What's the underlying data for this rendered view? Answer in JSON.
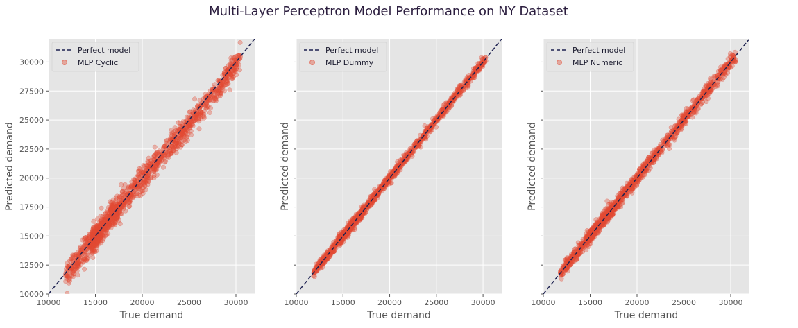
{
  "title": "Multi-Layer Perceptron Model Performance on NY Dataset",
  "colors": {
    "panel_bg": "#e5e5e5",
    "grid": "#ffffff",
    "points": "#e24a33",
    "perfect_line": "#1c2050",
    "text": "#555555"
  },
  "chart_data": [
    {
      "type": "scatter",
      "xlabel": "True demand",
      "ylabel": "Predicted demand",
      "xlim": [
        10000,
        32000
      ],
      "ylim": [
        10000,
        32000
      ],
      "xticks": [
        "10000",
        "15000",
        "20000",
        "25000",
        "30000"
      ],
      "yticks": [
        "10000",
        "12500",
        "15000",
        "17500",
        "20000",
        "22500",
        "25000",
        "27500",
        "30000"
      ],
      "grid": true,
      "legend": "top-left",
      "series": [
        {
          "name": "Perfect model",
          "kind": "line",
          "x": [
            10000,
            32000
          ],
          "y": [
            10000,
            32000
          ]
        },
        {
          "name": "MLP Cyclic",
          "kind": "scatter",
          "x_range": [
            11800,
            30500
          ],
          "points": [
            [
              12000,
              12000
            ],
            [
              15000,
              14800
            ],
            [
              18000,
              17900
            ],
            [
              20000,
              20100
            ],
            [
              22000,
              22200
            ],
            [
              25000,
              25100
            ],
            [
              28000,
              28200
            ],
            [
              30000,
              29600
            ]
          ]
        }
      ]
    },
    {
      "type": "scatter",
      "xlabel": "True demand",
      "ylabel": "Predicted demand",
      "xlim": [
        10000,
        32000
      ],
      "ylim": [
        10000,
        32000
      ],
      "xticks": [
        "10000",
        "15000",
        "20000",
        "25000",
        "30000"
      ],
      "yticks": [],
      "grid": true,
      "legend": "top-left",
      "series": [
        {
          "name": "Perfect model",
          "kind": "line",
          "x": [
            10000,
            32000
          ],
          "y": [
            10000,
            32000
          ]
        },
        {
          "name": "MLP Dummy",
          "kind": "scatter",
          "x_range": [
            11800,
            30300
          ],
          "points": [
            [
              12000,
              12000
            ],
            [
              15000,
              15000
            ],
            [
              18000,
              18000
            ],
            [
              20000,
              20000
            ],
            [
              22000,
              22000
            ],
            [
              25000,
              25000
            ],
            [
              28000,
              28000
            ],
            [
              30000,
              30000
            ]
          ]
        }
      ]
    },
    {
      "type": "scatter",
      "xlabel": "True demand",
      "ylabel": "Predicted demand",
      "xlim": [
        10000,
        32000
      ],
      "ylim": [
        10000,
        32000
      ],
      "xticks": [
        "10000",
        "15000",
        "20000",
        "25000",
        "30000"
      ],
      "yticks": [],
      "grid": true,
      "legend": "top-left",
      "series": [
        {
          "name": "Perfect model",
          "kind": "line",
          "x": [
            10000,
            32000
          ],
          "y": [
            10000,
            32000
          ]
        },
        {
          "name": "MLP Numeric",
          "kind": "scatter",
          "x_range": [
            11800,
            30500
          ],
          "points": [
            [
              12000,
              12000
            ],
            [
              15000,
              15000
            ],
            [
              18000,
              18000
            ],
            [
              20000,
              20000
            ],
            [
              22000,
              22000
            ],
            [
              25000,
              25000
            ],
            [
              28000,
              28000
            ],
            [
              30000,
              30000
            ]
          ]
        }
      ]
    }
  ]
}
